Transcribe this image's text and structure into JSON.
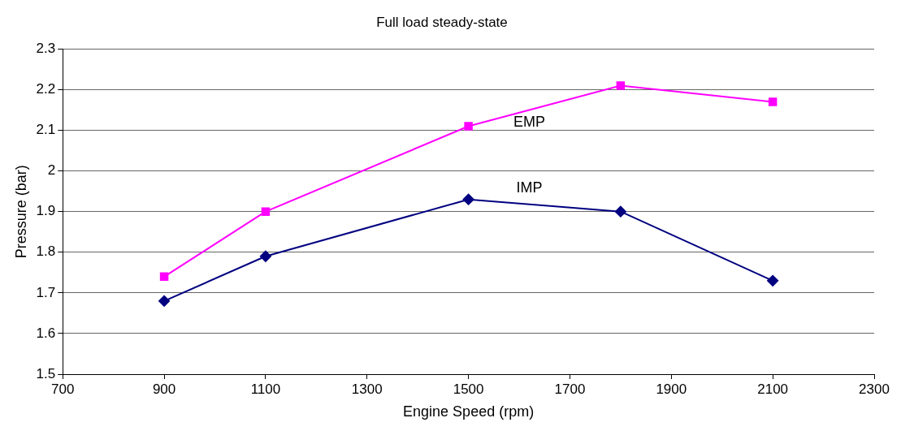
{
  "chart_data": {
    "type": "line",
    "title": "Full load steady-state",
    "xlabel": "Engine Speed (rpm)",
    "ylabel": "Pressure (bar)",
    "x": [
      900,
      1100,
      1500,
      1800,
      2100
    ],
    "series": [
      {
        "name": "EMP",
        "color": "#ff00ff",
        "marker": "square",
        "values": [
          1.74,
          1.9,
          2.11,
          2.21,
          2.17
        ]
      },
      {
        "name": "IMP",
        "color": "#000080",
        "marker": "diamond",
        "values": [
          1.68,
          1.79,
          1.93,
          1.9,
          1.73
        ]
      }
    ],
    "xlim": [
      700,
      2300
    ],
    "xticks": [
      700,
      900,
      1100,
      1300,
      1500,
      1700,
      1900,
      2100,
      2300
    ],
    "ylim": [
      1.5,
      2.3
    ],
    "yticks": [
      1.5,
      1.6,
      1.7,
      1.8,
      1.9,
      2,
      2.1,
      2.2,
      2.3
    ],
    "grid": "y",
    "legend": false,
    "line_style": "solid"
  }
}
